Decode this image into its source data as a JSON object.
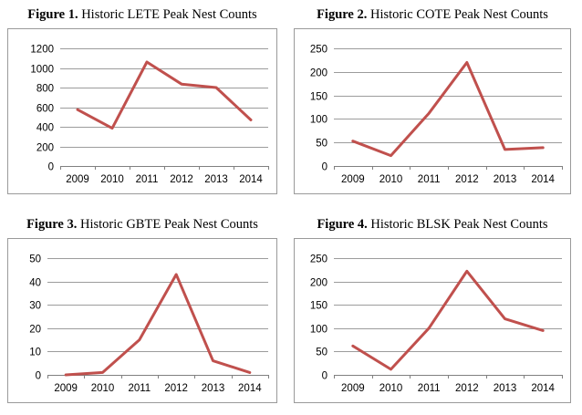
{
  "charts": [
    {
      "fig": "Figure 1.",
      "title": "Historic LETE Peak Nest Counts"
    },
    {
      "fig": "Figure 2.",
      "title": "Historic COTE Peak Nest Counts"
    },
    {
      "fig": "Figure 3.",
      "title": "Historic GBTE Peak Nest Counts"
    },
    {
      "fig": "Figure 4.",
      "title": "Historic BLSK Peak Nest Counts"
    }
  ],
  "chart_data": [
    {
      "type": "line",
      "title": "Figure 1. Historic LETE Peak Nest Counts",
      "categories": [
        "2009",
        "2010",
        "2011",
        "2012",
        "2013",
        "2014"
      ],
      "values": [
        575,
        385,
        1060,
        835,
        800,
        470
      ],
      "ylim": [
        0,
        1200
      ],
      "yticks": [
        0,
        200,
        400,
        600,
        800,
        1000,
        1200
      ],
      "grid": true,
      "color": "#c0504d"
    },
    {
      "type": "line",
      "title": "Figure 2. Historic COTE Peak Nest Counts",
      "categories": [
        "2009",
        "2010",
        "2011",
        "2012",
        "2013",
        "2014"
      ],
      "values": [
        53,
        22,
        112,
        220,
        35,
        39
      ],
      "ylim": [
        0,
        250
      ],
      "yticks": [
        0,
        50,
        100,
        150,
        200,
        250
      ],
      "grid": true,
      "color": "#c0504d"
    },
    {
      "type": "line",
      "title": "Figure 3. Historic GBTE Peak Nest Counts",
      "categories": [
        "2009",
        "2010",
        "2011",
        "2012",
        "2013",
        "2014"
      ],
      "values": [
        0,
        1,
        15,
        43,
        6,
        1
      ],
      "ylim": [
        0,
        50
      ],
      "yticks": [
        0,
        10,
        20,
        30,
        40,
        50
      ],
      "grid": true,
      "color": "#c0504d"
    },
    {
      "type": "line",
      "title": "Figure 4. Historic BLSK Peak Nest Counts",
      "categories": [
        "2009",
        "2010",
        "2011",
        "2012",
        "2013",
        "2014"
      ],
      "values": [
        62,
        12,
        100,
        222,
        120,
        95
      ],
      "ylim": [
        0,
        250
      ],
      "yticks": [
        0,
        50,
        100,
        150,
        200,
        250
      ],
      "grid": true,
      "color": "#c0504d"
    }
  ]
}
